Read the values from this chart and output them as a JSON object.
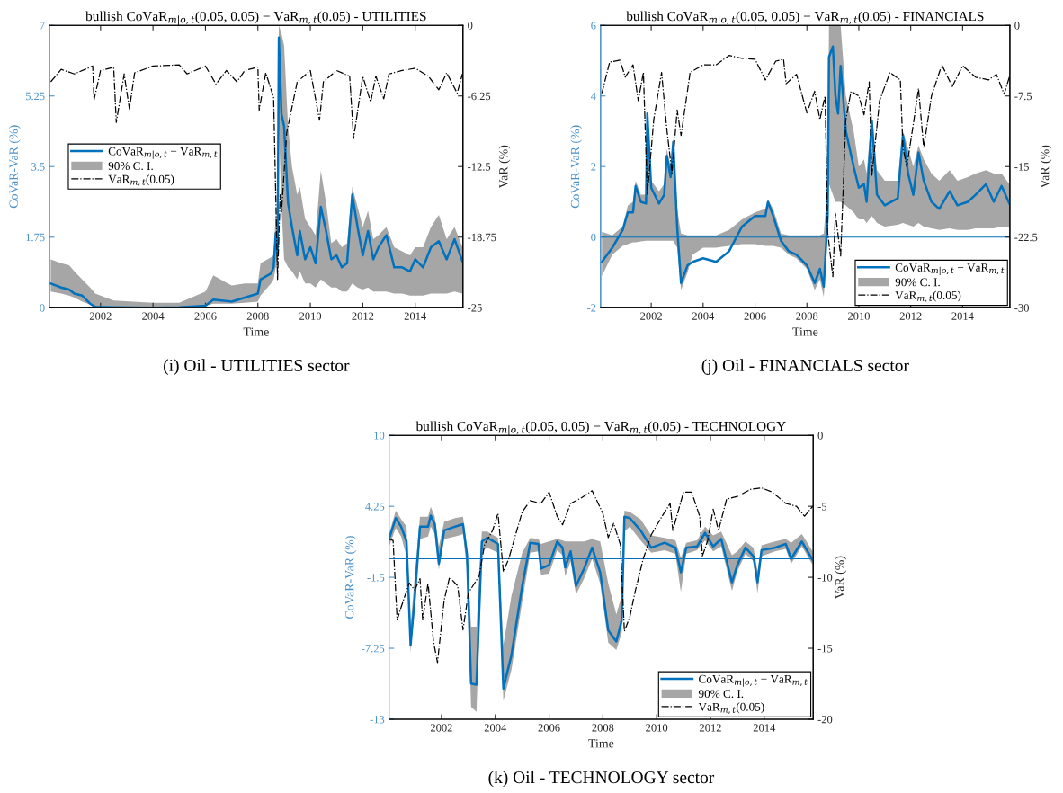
{
  "chart_data": [
    {
      "type": "line",
      "title": "bullish CoVaR$_{m|o,t}$(0.05, 0.05) − VaR$_{m,t}$(0.05) - UTILITIES",
      "xlabel": "Time",
      "ylabel": "CoVaR-VaR (%)",
      "y2label": "VaR (%)",
      "xlim": [
        2000.05,
        2015.82
      ],
      "xticks": [
        2002,
        2004,
        2006,
        2008,
        2010,
        2012,
        2014
      ],
      "ylim": [
        0,
        7
      ],
      "yticks": [
        0,
        1.75,
        3.5,
        5.25,
        7
      ],
      "y2lim": [
        -25,
        0
      ],
      "y2ticks": [
        -25,
        -18.75,
        -12.5,
        -6.25,
        0
      ],
      "legend": "left",
      "annotations": [
        "(i) Oil - UTILITIES sector"
      ],
      "series": [
        {
          "name": "CoVaR$_{m|o,t}$ − VaR$_{m,t}$",
          "color": "#0072bd",
          "x": [
            2000.1,
            2000.5,
            2000.8,
            2001.0,
            2001.3,
            2001.6,
            2001.8,
            2002.5,
            2004.0,
            2005.0,
            2006.0,
            2006.3,
            2007.0,
            2007.5,
            2008.0,
            2008.1,
            2008.5,
            2008.6,
            2008.68,
            2008.75,
            2008.8,
            2008.9,
            2009.0,
            2009.15,
            2009.3,
            2009.5,
            2009.6,
            2009.8,
            2010.0,
            2010.2,
            2010.4,
            2010.6,
            2010.8,
            2011.0,
            2011.2,
            2011.4,
            2011.6,
            2011.8,
            2012.0,
            2012.2,
            2012.4,
            2012.6,
            2012.9,
            2013.2,
            2013.5,
            2013.8,
            2014.0,
            2014.3,
            2014.6,
            2014.9,
            2015.2,
            2015.5,
            2015.8
          ],
          "values": [
            0.6,
            0.5,
            0.45,
            0.35,
            0.3,
            0.1,
            0.02,
            0.01,
            0.0,
            0.01,
            0.05,
            0.2,
            0.15,
            0.25,
            0.35,
            0.7,
            0.85,
            1.0,
            1.85,
            1.3,
            6.7,
            4.8,
            4.5,
            2.6,
            2.0,
            1.3,
            1.9,
            1.2,
            1.5,
            1.1,
            2.5,
            1.9,
            1.2,
            1.3,
            1.0,
            1.1,
            2.8,
            2.0,
            1.3,
            1.9,
            1.2,
            1.5,
            1.8,
            1.0,
            1.0,
            0.9,
            1.2,
            1.0,
            1.5,
            1.65,
            1.2,
            1.7,
            1.15
          ]
        },
        {
          "name": "90% C. I.",
          "color": "#a6a6a6",
          "x": [
            2000.1,
            2000.5,
            2000.8,
            2001.0,
            2001.3,
            2001.6,
            2001.8,
            2002.5,
            2004.0,
            2005.0,
            2006.0,
            2006.3,
            2007.0,
            2007.5,
            2008.0,
            2008.1,
            2008.5,
            2008.6,
            2008.68,
            2008.75,
            2008.8,
            2008.9,
            2009.0,
            2009.15,
            2009.3,
            2009.5,
            2009.6,
            2009.8,
            2010.0,
            2010.2,
            2010.4,
            2010.6,
            2010.8,
            2011.0,
            2011.2,
            2011.4,
            2011.6,
            2011.8,
            2012.0,
            2012.2,
            2012.4,
            2012.6,
            2012.9,
            2013.2,
            2013.5,
            2013.8,
            2014.0,
            2014.3,
            2014.6,
            2014.9,
            2015.2,
            2015.5,
            2015.8
          ],
          "values": [
            null,
            null,
            null,
            null,
            null,
            null,
            null,
            null,
            null,
            null,
            null,
            null,
            null,
            null,
            null,
            null,
            null,
            null,
            null,
            null,
            null,
            null,
            null,
            null,
            null,
            null,
            null,
            null,
            null,
            null,
            null,
            null,
            null,
            null,
            null,
            null,
            null,
            null,
            null,
            null,
            null,
            null,
            null,
            null,
            null,
            null,
            null,
            null,
            null,
            null,
            null,
            null,
            null
          ],
          "lower": [
            0.4,
            0.35,
            0.3,
            0.25,
            0.15,
            0.08,
            0.02,
            0.0,
            0.0,
            0.0,
            0.05,
            0.1,
            0.1,
            0.12,
            0.15,
            0.3,
            0.6,
            0.7,
            1.0,
            1.0,
            4.5,
            2.5,
            1.2,
            1.0,
            0.9,
            0.7,
            0.9,
            0.6,
            0.6,
            0.5,
            0.7,
            0.6,
            0.5,
            0.5,
            0.4,
            0.4,
            0.6,
            0.5,
            0.45,
            0.5,
            0.4,
            0.4,
            0.4,
            0.35,
            0.35,
            0.3,
            0.3,
            0.3,
            0.35,
            0.35,
            0.35,
            0.4,
            0.35
          ],
          "upper": [
            1.2,
            1.1,
            1.05,
            0.9,
            0.7,
            0.5,
            0.35,
            0.18,
            0.12,
            0.12,
            0.4,
            0.8,
            0.55,
            0.6,
            0.6,
            1.1,
            1.25,
            1.3,
            2.3,
            2.0,
            7,
            6.8,
            6.5,
            4.5,
            3.5,
            2.8,
            3.0,
            2.2,
            2.0,
            1.8,
            3.4,
            2.6,
            1.6,
            1.7,
            1.5,
            1.6,
            3.0,
            2.5,
            2.0,
            2.4,
            1.7,
            1.8,
            2.0,
            1.5,
            1.4,
            1.3,
            1.5,
            1.5,
            2.0,
            2.3,
            1.7,
            2.0,
            1.5
          ]
        },
        {
          "name": "VaR$_{m,t}$(0.05)",
          "color": "#000000",
          "axis": "y2",
          "line_style": "dashdot",
          "x": [
            2000.1,
            2000.5,
            2001.0,
            2001.7,
            2001.75,
            2002.0,
            2002.5,
            2002.6,
            2002.9,
            2003.1,
            2003.3,
            2004.0,
            2005.0,
            2005.3,
            2006.0,
            2006.4,
            2006.8,
            2007.2,
            2007.5,
            2008.0,
            2008.05,
            2008.3,
            2008.6,
            2008.75,
            2008.85,
            2008.9,
            2009.1,
            2009.5,
            2010.0,
            2010.35,
            2010.5,
            2011.0,
            2011.5,
            2011.65,
            2012.0,
            2012.3,
            2012.5,
            2012.8,
            2013.0,
            2013.5,
            2014.0,
            2014.5,
            2014.9,
            2015.2,
            2015.6,
            2015.8
          ],
          "values": [
            -5.0,
            -3.9,
            -4.3,
            -3.6,
            -6.6,
            -4.0,
            -3.7,
            -8.6,
            -4.3,
            -7.4,
            -4.2,
            -3.6,
            -3.5,
            -4.3,
            -3.6,
            -5.2,
            -4.0,
            -5.0,
            -4.0,
            -3.7,
            -7.5,
            -4.2,
            -6.4,
            -22.5,
            -15.0,
            -16.5,
            -9.5,
            -5.0,
            -4.0,
            -8.4,
            -5.0,
            -4.0,
            -4.5,
            -10.0,
            -4.5,
            -6.8,
            -4.5,
            -6.5,
            -4.3,
            -4.0,
            -3.8,
            -4.5,
            -5.7,
            -4.2,
            -6.0,
            -4.3
          ]
        }
      ]
    },
    {
      "type": "line",
      "title": "bullish CoVaR$_{m|o,t}$(0.05, 0.05) − VaR$_{m,t}$(0.05) - FINANCIALS",
      "xlabel": "Time",
      "ylabel": "CoVaR-VaR (%)",
      "y2label": "VaR (%)",
      "xlim": [
        2000.05,
        2015.82
      ],
      "xticks": [
        2002,
        2004,
        2006,
        2008,
        2010,
        2012,
        2014
      ],
      "ylim": [
        -2,
        6
      ],
      "yticks": [
        -2,
        0,
        2,
        4,
        6
      ],
      "y2lim": [
        -30,
        0
      ],
      "y2ticks": [
        -30,
        -22.5,
        -15,
        -7.5,
        0
      ],
      "legend": "bottom right",
      "ref_lines": [
        {
          "axis": "y",
          "value": 0,
          "color": "#0072bd"
        }
      ],
      "annotations": [
        "(j) Oil - FINANCIALS sector"
      ],
      "series": [
        {
          "name": "CoVaR$_{m|o,t}$ − VaR$_{m,t}$",
          "color": "#0072bd",
          "x": [
            2000.1,
            2000.5,
            2000.9,
            2001.1,
            2001.3,
            2001.4,
            2001.6,
            2001.8,
            2001.85,
            2002.0,
            2002.3,
            2002.5,
            2002.6,
            2002.75,
            2002.85,
            2003.0,
            2003.15,
            2003.4,
            2003.6,
            2004.0,
            2004.5,
            2005.0,
            2005.5,
            2006.0,
            2006.4,
            2006.5,
            2006.7,
            2007.0,
            2007.3,
            2007.6,
            2008.0,
            2008.3,
            2008.5,
            2008.65,
            2008.8,
            2008.85,
            2009.0,
            2009.1,
            2009.2,
            2009.3,
            2009.5,
            2009.8,
            2010.0,
            2010.2,
            2010.3,
            2010.5,
            2010.7,
            2011.0,
            2011.5,
            2011.7,
            2011.9,
            2012.1,
            2012.3,
            2012.5,
            2012.8,
            2013.1,
            2013.5,
            2013.8,
            2014.2,
            2014.5,
            2014.9,
            2015.2,
            2015.5,
            2015.8
          ],
          "values": [
            -0.7,
            -0.3,
            0.2,
            0.7,
            0.7,
            1.45,
            1.0,
            0.95,
            3.5,
            1.4,
            0.95,
            1.2,
            2.3,
            1.7,
            2.7,
            0.3,
            -1.3,
            -0.8,
            -0.7,
            -0.6,
            -0.7,
            -0.4,
            0.3,
            0.6,
            0.6,
            1.0,
            0.6,
            -0.1,
            -0.4,
            -0.5,
            -0.8,
            -1.3,
            -0.9,
            -1.4,
            0.6,
            5.1,
            5.4,
            4.0,
            3.5,
            4.85,
            3.0,
            2.0,
            1.4,
            1.5,
            1.0,
            3.3,
            1.2,
            0.9,
            1.1,
            2.9,
            1.8,
            1.2,
            2.4,
            1.6,
            1.0,
            0.8,
            1.3,
            0.9,
            1.0,
            1.2,
            1.5,
            1.0,
            1.45,
            0.95
          ]
        },
        {
          "name": "90% C. I.",
          "color": "#a6a6a6",
          "x": [
            2000.1,
            2000.5,
            2000.9,
            2001.1,
            2001.3,
            2001.4,
            2001.6,
            2001.8,
            2001.85,
            2002.0,
            2002.3,
            2002.5,
            2002.6,
            2002.75,
            2002.85,
            2003.0,
            2003.15,
            2003.4,
            2003.6,
            2004.0,
            2004.5,
            2005.0,
            2005.5,
            2006.0,
            2006.4,
            2006.5,
            2006.7,
            2007.0,
            2007.3,
            2007.6,
            2008.0,
            2008.3,
            2008.5,
            2008.65,
            2008.8,
            2008.85,
            2009.0,
            2009.1,
            2009.2,
            2009.3,
            2009.5,
            2009.8,
            2010.0,
            2010.2,
            2010.3,
            2010.5,
            2010.7,
            2011.0,
            2011.5,
            2011.7,
            2011.9,
            2012.1,
            2012.3,
            2012.5,
            2012.8,
            2013.1,
            2013.5,
            2013.8,
            2014.2,
            2014.5,
            2014.9,
            2015.2,
            2015.5,
            2015.8
          ],
          "values": [
            null,
            null,
            null,
            null,
            null,
            null,
            null,
            null,
            null,
            null,
            null,
            null,
            null,
            null,
            null,
            null,
            null,
            null,
            null,
            null,
            null,
            null,
            null,
            null,
            null,
            null,
            null,
            null,
            null,
            null,
            null,
            null,
            null,
            null,
            null,
            null,
            null,
            null,
            null,
            null,
            null,
            null,
            null,
            null,
            null,
            null,
            null,
            null,
            null,
            null,
            null,
            null,
            null,
            null,
            null,
            null,
            null,
            null,
            null,
            null,
            null,
            null,
            null,
            null
          ],
          "lower": [
            -1.1,
            -0.5,
            -0.25,
            -0.2,
            -0.15,
            -0.15,
            -0.12,
            -0.1,
            -0.1,
            -0.1,
            -0.1,
            -0.1,
            -0.1,
            -0.1,
            -0.1,
            -0.3,
            -1.5,
            -1.0,
            -0.5,
            -0.3,
            -0.3,
            -0.25,
            -0.2,
            -0.2,
            -0.25,
            -0.25,
            -0.25,
            -0.3,
            -0.5,
            -0.6,
            -0.9,
            -1.5,
            -1.2,
            -1.7,
            0.2,
            1.5,
            1.2,
            1.0,
            1.0,
            1.0,
            0.9,
            0.7,
            0.5,
            0.5,
            0.4,
            0.6,
            0.4,
            0.3,
            0.35,
            0.4,
            0.35,
            0.3,
            0.4,
            0.3,
            0.25,
            0.2,
            0.25,
            0.2,
            0.2,
            0.25,
            0.25,
            0.25,
            0.3,
            0.3
          ],
          "upper": [
            0.15,
            0.05,
            0.3,
            0.9,
            1.0,
            1.6,
            1.2,
            1.2,
            3.6,
            1.6,
            1.3,
            1.5,
            2.5,
            2.0,
            2.8,
            0.8,
            0.1,
            0.05,
            0.05,
            0.05,
            0.05,
            0.2,
            0.5,
            0.7,
            0.8,
            1.05,
            0.8,
            0.1,
            0.05,
            0.05,
            0.05,
            0.05,
            0.05,
            0.1,
            1.5,
            6,
            6,
            6,
            6,
            6,
            4.0,
            3.0,
            2.0,
            2.2,
            1.8,
            3.5,
            1.9,
            1.6,
            1.6,
            3.0,
            2.5,
            2.0,
            2.6,
            2.2,
            1.8,
            1.6,
            1.9,
            1.6,
            1.7,
            1.8,
            1.9,
            1.8,
            1.8,
            1.5
          ]
        },
        {
          "name": "VaR$_{m,t}$(0.05)",
          "color": "#000000",
          "axis": "y2",
          "line_style": "dashdot",
          "x": [
            2000.1,
            2000.4,
            2000.8,
            2001.0,
            2001.3,
            2001.5,
            2001.7,
            2001.85,
            2002.1,
            2002.4,
            2002.6,
            2002.8,
            2003.0,
            2003.15,
            2003.5,
            2004.0,
            2004.5,
            2005.0,
            2005.5,
            2006.0,
            2006.4,
            2006.8,
            2007.1,
            2007.2,
            2007.6,
            2008.0,
            2008.3,
            2008.5,
            2008.7,
            2008.8,
            2009.0,
            2009.1,
            2009.3,
            2009.5,
            2009.7,
            2010.0,
            2010.2,
            2010.4,
            2010.5,
            2010.8,
            2011.2,
            2011.6,
            2011.7,
            2011.85,
            2012.1,
            2012.3,
            2012.5,
            2012.8,
            2013.2,
            2013.6,
            2014.0,
            2014.5,
            2015.0,
            2015.3,
            2015.6,
            2015.8
          ],
          "values": [
            -7.2,
            -3.9,
            -3.7,
            -5.5,
            -4.2,
            -8.0,
            -5.0,
            -18.0,
            -10.0,
            -5.0,
            -11.0,
            -15.7,
            -9.0,
            -11.7,
            -5.0,
            -4.2,
            -4.2,
            -3.2,
            -3.5,
            -3.6,
            -5.8,
            -3.8,
            -3.6,
            -6.2,
            -5.2,
            -9.3,
            -7.0,
            -10.0,
            -7.5,
            -22.0,
            -26.7,
            -20.0,
            -24.5,
            -10.0,
            -7.0,
            -7.5,
            -9.5,
            -6.0,
            -16.0,
            -8.0,
            -5.0,
            -5.8,
            -13.0,
            -15.0,
            -10.5,
            -6.7,
            -13.0,
            -7.5,
            -4.2,
            -6.5,
            -4.3,
            -5.5,
            -5.8,
            -5.2,
            -7.3,
            -5.5
          ]
        }
      ]
    },
    {
      "type": "line",
      "title": "bullish CoVaR$_{m|o,t}$(0.05, 0.05) − VaR$_{m,t}$(0.05) - TECHNOLOGY",
      "xlabel": "Time",
      "ylabel": "CoVaR-VaR (%)",
      "y2label": "VaR (%)",
      "xlim": [
        2000.05,
        2015.82
      ],
      "xticks": [
        2002,
        2004,
        2006,
        2008,
        2010,
        2012,
        2014
      ],
      "ylim": [
        -13,
        10
      ],
      "yticks": [
        -13,
        -7.25,
        -1.5,
        4.25,
        10
      ],
      "y2lim": [
        -20,
        0
      ],
      "y2ticks": [
        -20,
        -15,
        -10,
        -5,
        0
      ],
      "legend": "bottom right",
      "ref_lines": [
        {
          "axis": "y",
          "value": 0,
          "color": "#0072bd"
        }
      ],
      "annotations": [
        "(k) Oil - TECHNOLOGY sector"
      ],
      "series": [
        {
          "name": "CoVaR$_{m|o,t}$ − VaR$_{m,t}$",
          "color": "#0072bd",
          "x": [
            2000.05,
            2000.3,
            2000.5,
            2000.7,
            2000.85,
            2001.0,
            2001.2,
            2001.5,
            2001.6,
            2001.75,
            2001.9,
            2002.1,
            2002.5,
            2002.8,
            2002.95,
            2003.1,
            2003.3,
            2003.5,
            2003.7,
            2004.1,
            2004.3,
            2004.6,
            2005.0,
            2005.3,
            2005.6,
            2005.7,
            2006.0,
            2006.3,
            2006.5,
            2006.6,
            2006.8,
            2007.0,
            2007.3,
            2007.6,
            2007.9,
            2008.2,
            2008.5,
            2008.7,
            2008.8,
            2009.0,
            2009.4,
            2009.8,
            2010.3,
            2010.7,
            2010.9,
            2011.1,
            2011.5,
            2011.8,
            2012.1,
            2012.4,
            2012.8,
            2013.0,
            2013.3,
            2013.6,
            2013.75,
            2013.9,
            2014.4,
            2014.8,
            2015.0,
            2015.4,
            2015.8
          ],
          "values": [
            1.6,
            3.3,
            2.6,
            1.4,
            -7.0,
            -3.3,
            2.6,
            2.6,
            3.5,
            2.8,
            -0.4,
            2.3,
            2.6,
            2.8,
            0.3,
            -10.1,
            -10.2,
            1.4,
            1.7,
            1.2,
            -10.5,
            -7.8,
            -2.2,
            1.3,
            1.2,
            -0.8,
            -0.5,
            1.4,
            0.9,
            -0.7,
            0.6,
            -2.2,
            -0.8,
            0.9,
            -1.1,
            -5.8,
            -6.7,
            -5.0,
            3.4,
            3.3,
            2.3,
            0.9,
            1.3,
            0.9,
            -1.1,
            0.9,
            1.0,
            2.1,
            1.0,
            1.6,
            -1.9,
            -0.5,
            0.9,
            0.2,
            -1.9,
            0.7,
            0.9,
            1.2,
            0.0,
            1.4,
            -0.1
          ]
        },
        {
          "name": "90% C. I.",
          "color": "#a6a6a6",
          "x": [
            2000.05,
            2000.3,
            2000.5,
            2000.7,
            2000.85,
            2001.0,
            2001.2,
            2001.5,
            2001.6,
            2001.75,
            2001.9,
            2002.1,
            2002.5,
            2002.8,
            2002.95,
            2003.1,
            2003.3,
            2003.5,
            2003.7,
            2004.1,
            2004.3,
            2004.6,
            2005.0,
            2005.3,
            2005.6,
            2005.7,
            2006.0,
            2006.3,
            2006.5,
            2006.6,
            2006.8,
            2007.0,
            2007.3,
            2007.6,
            2007.9,
            2008.2,
            2008.5,
            2008.7,
            2008.8,
            2009.0,
            2009.4,
            2009.8,
            2010.3,
            2010.7,
            2010.9,
            2011.1,
            2011.5,
            2011.8,
            2012.1,
            2012.4,
            2012.8,
            2013.0,
            2013.3,
            2013.6,
            2013.75,
            2013.9,
            2014.4,
            2014.8,
            2015.0,
            2015.4,
            2015.8
          ],
          "values": [
            null,
            null,
            null,
            null,
            null,
            null,
            null,
            null,
            null,
            null,
            null,
            null,
            null,
            null,
            null,
            null,
            null,
            null,
            null,
            null,
            null,
            null,
            null,
            null,
            null,
            null,
            null,
            null,
            null,
            null,
            null,
            null,
            null,
            null,
            null,
            null,
            null,
            null,
            null,
            null,
            null,
            null,
            null,
            null,
            null,
            null,
            null,
            null,
            null,
            null,
            null,
            null,
            null,
            null,
            null,
            null,
            null,
            null,
            null,
            null,
            null
          ],
          "lower": [
            1.0,
            2.5,
            1.8,
            0.2,
            -7.6,
            -4.0,
            1.6,
            1.8,
            2.6,
            2.0,
            -0.9,
            1.6,
            1.8,
            2.0,
            -1.0,
            -12.0,
            -12.4,
            0.6,
            0.9,
            0.5,
            -11.5,
            -9.0,
            -3.5,
            0.5,
            0.6,
            -1.3,
            -1.2,
            0.7,
            0.3,
            -1.4,
            -0.2,
            -2.9,
            -1.6,
            0.0,
            -2.0,
            -6.8,
            -7.4,
            -6.0,
            2.2,
            2.6,
            1.5,
            0.5,
            0.7,
            0.4,
            -2.7,
            0.4,
            0.7,
            1.5,
            0.6,
            1.0,
            -2.6,
            -1.0,
            0.4,
            -0.2,
            -2.8,
            0.2,
            0.6,
            0.8,
            -0.4,
            1.0,
            -0.5
          ],
          "upper": [
            2.0,
            3.9,
            3.2,
            2.6,
            -5.5,
            -1.5,
            3.4,
            3.4,
            4.2,
            3.4,
            1.0,
            3.0,
            3.3,
            3.4,
            0.8,
            -5.5,
            -5.5,
            2.2,
            2.2,
            1.7,
            -7.0,
            -3.0,
            0.5,
            1.7,
            1.6,
            1.2,
            1.4,
            1.6,
            1.5,
            1.4,
            1.4,
            1.4,
            1.4,
            1.6,
            1.4,
            -2.0,
            -4.5,
            -3.0,
            3.9,
            3.8,
            3.2,
            1.9,
            1.7,
            1.5,
            0.1,
            1.3,
            1.5,
            2.6,
            1.9,
            2.2,
            0.3,
            0.6,
            1.4,
            0.9,
            -1.0,
            1.1,
            1.4,
            1.6,
            1.3,
            2.0,
            0.6
          ]
        },
        {
          "name": "VaR$_{m,t}$(0.05)",
          "color": "#000000",
          "axis": "y2",
          "line_style": "dashdot",
          "x": [
            2000.05,
            2000.2,
            2000.35,
            2000.5,
            2000.8,
            2001.0,
            2001.2,
            2001.3,
            2001.5,
            2001.7,
            2001.85,
            2002.1,
            2002.3,
            2002.6,
            2002.8,
            2003.0,
            2003.4,
            2003.6,
            2003.9,
            2004.1,
            2004.3,
            2004.5,
            2004.8,
            2005.0,
            2005.3,
            2005.7,
            2006.0,
            2006.3,
            2006.5,
            2006.8,
            2007.2,
            2007.6,
            2008.0,
            2008.2,
            2008.4,
            2008.65,
            2008.8,
            2009.0,
            2009.2,
            2009.5,
            2009.8,
            2010.2,
            2010.5,
            2010.6,
            2011.0,
            2011.3,
            2011.6,
            2011.7,
            2011.9,
            2012.1,
            2012.3,
            2012.6,
            2013.0,
            2013.5,
            2013.9,
            2014.3,
            2014.8,
            2015.2,
            2015.5,
            2015.8
          ],
          "values": [
            -7.3,
            -7.4,
            -13.0,
            -12.1,
            -10.4,
            -10.9,
            -10.1,
            -13.0,
            -10.4,
            -14.5,
            -16.0,
            -11.6,
            -10.0,
            -10.6,
            -13.7,
            -11.1,
            -9.9,
            -7.7,
            -6.7,
            -5.5,
            -9.6,
            -8.7,
            -6.7,
            -5.4,
            -4.6,
            -4.8,
            -4.0,
            -5.7,
            -6.3,
            -4.8,
            -4.4,
            -3.9,
            -5.5,
            -7.2,
            -6.2,
            -7.7,
            -13.8,
            -12.8,
            -11.0,
            -8.7,
            -7.0,
            -5.7,
            -4.8,
            -6.7,
            -4.0,
            -4.0,
            -5.7,
            -8.5,
            -7.4,
            -5.2,
            -6.7,
            -4.5,
            -4.3,
            -3.8,
            -3.7,
            -4.0,
            -4.8,
            -5.0,
            -5.7,
            -5.0
          ]
        }
      ]
    }
  ]
}
